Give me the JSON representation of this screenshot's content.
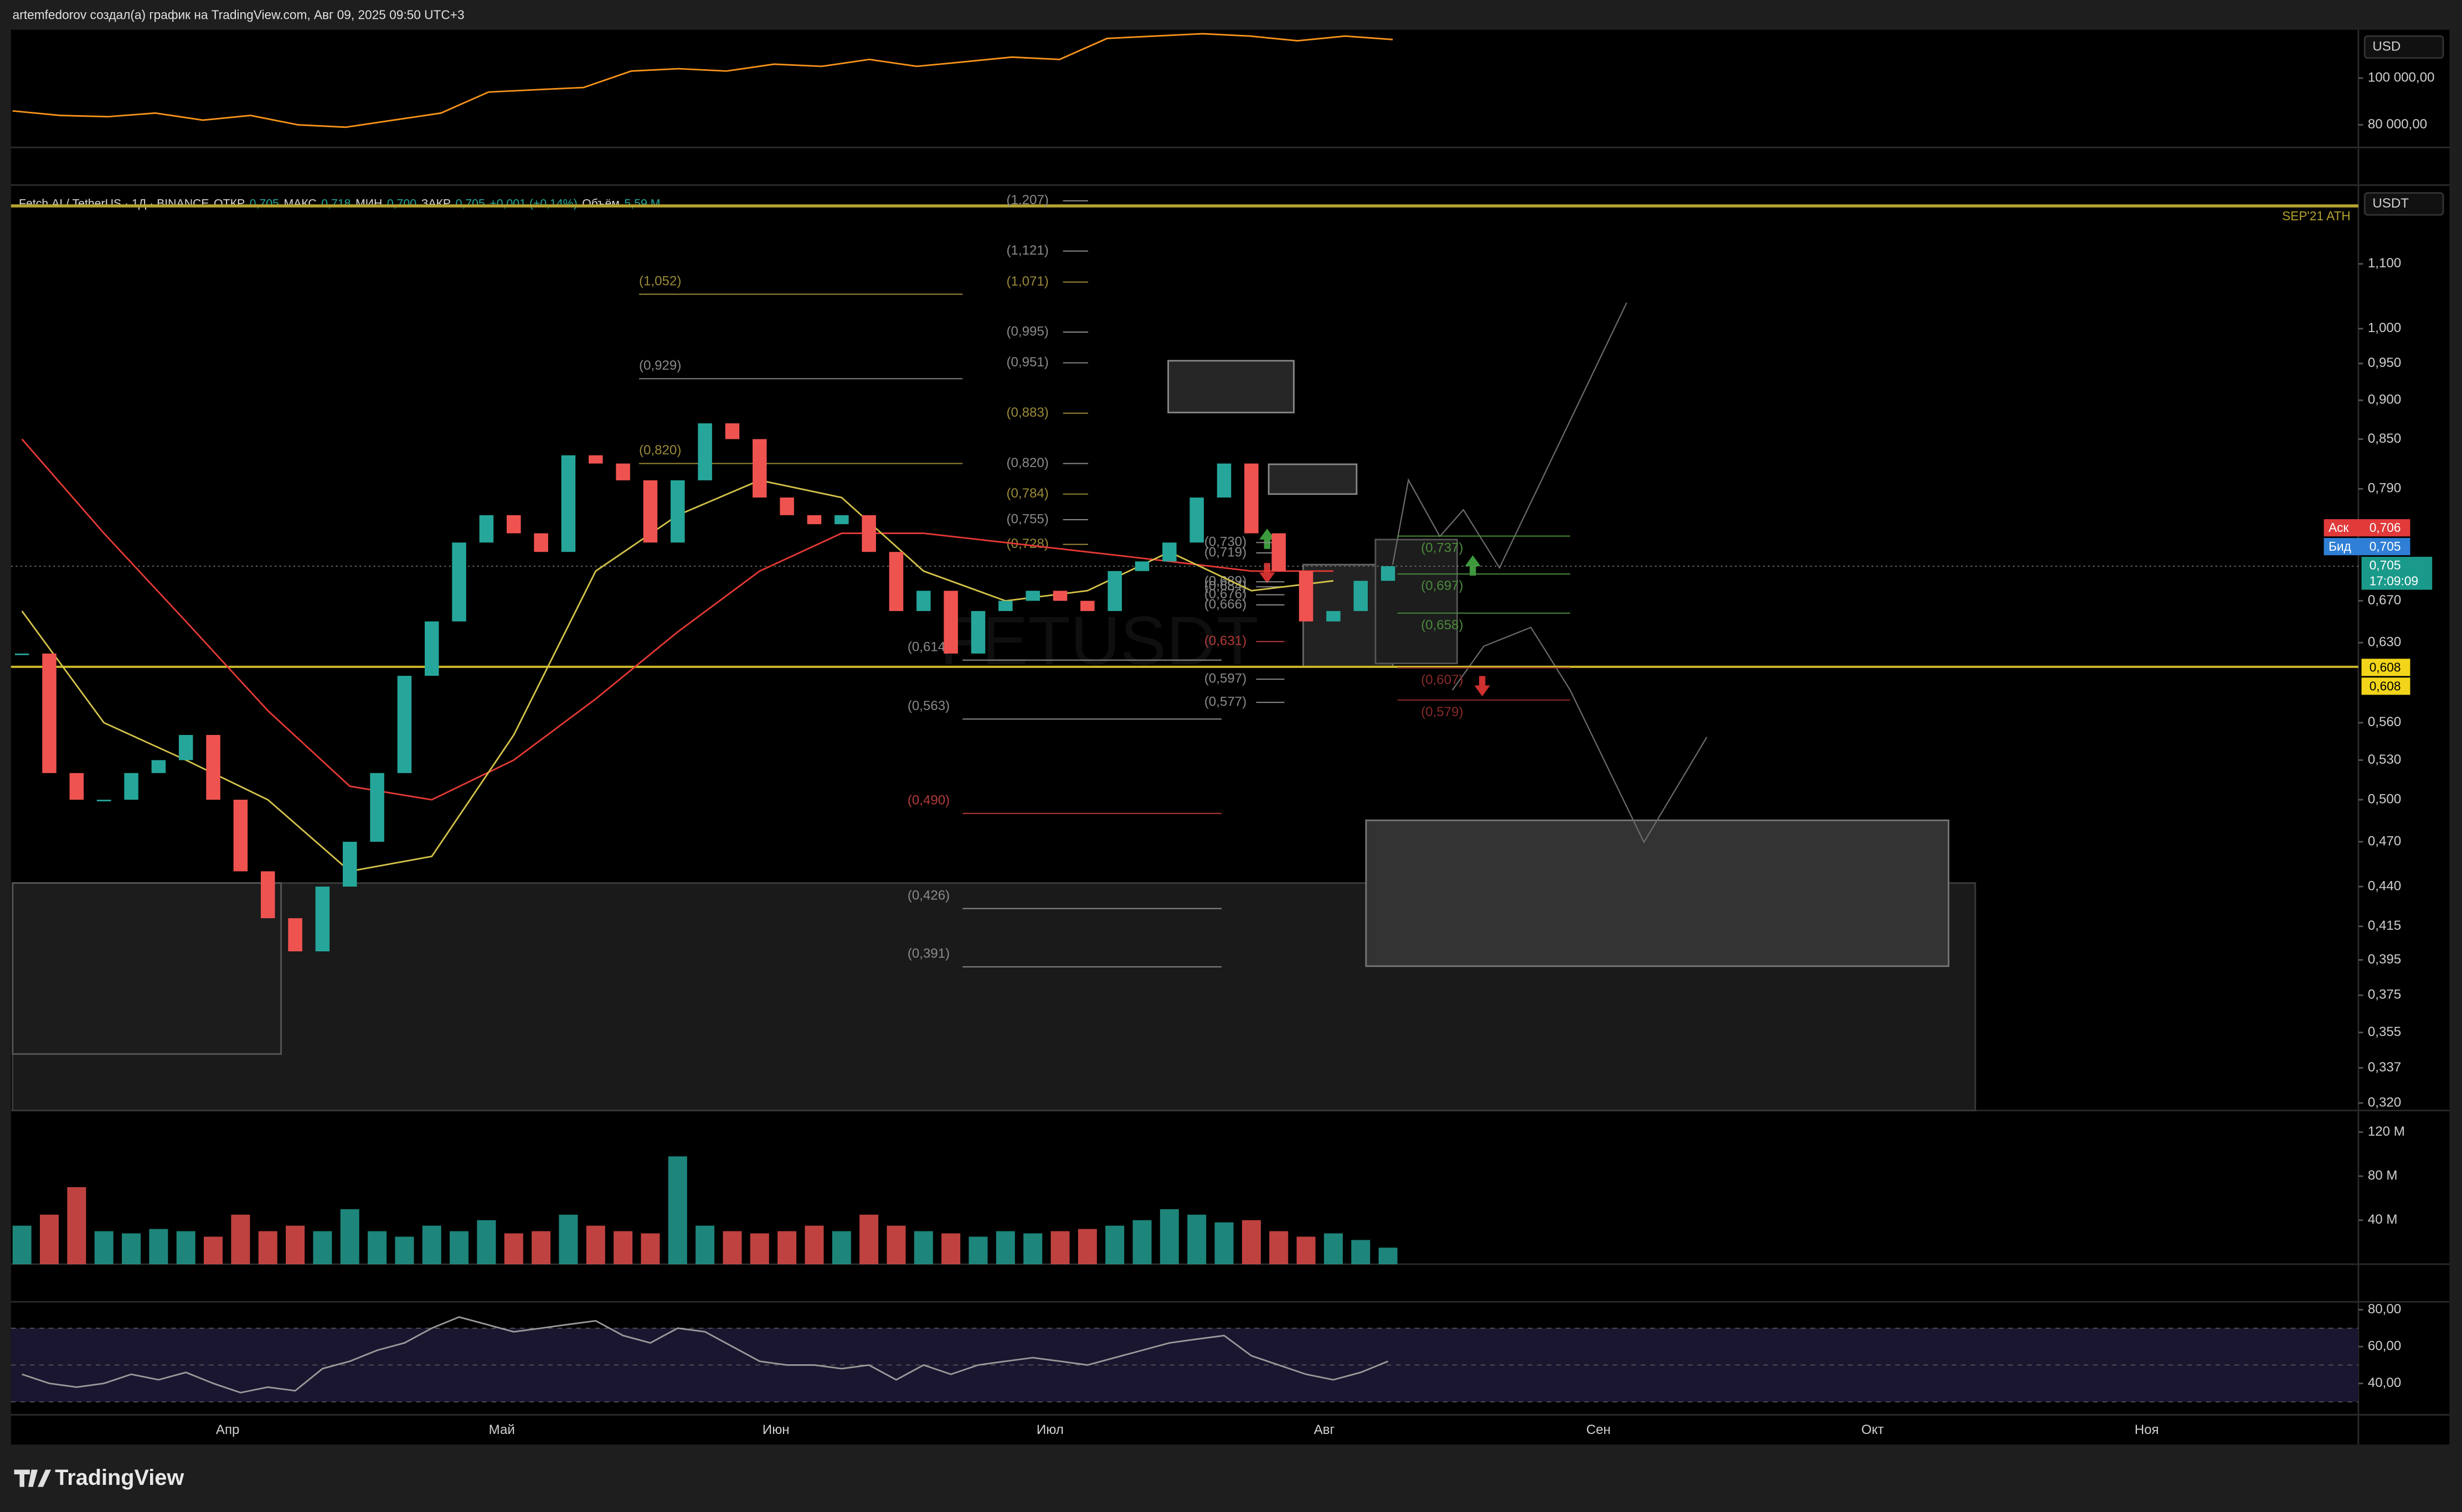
{
  "header": "artemfedorov создал(а) график на TradingView.com, Авг 09, 2025 09:50 UTC+3",
  "footer_logo": "TradingView",
  "chart_data": [
    {
      "type": "line",
      "currency": "USD",
      "color": "#f7931a",
      "values": [
        86000,
        84000,
        83500,
        85000,
        82000,
        84000,
        80000,
        79000,
        82000,
        85000,
        94000,
        95000,
        96000,
        103000,
        104000,
        103000,
        106000,
        105000,
        108000,
        105000,
        107000,
        109000,
        108000,
        117000,
        118000,
        119000,
        118000,
        116000,
        118000,
        116500
      ],
      "ylim": [
        71000,
        120000
      ],
      "yticks": [
        {
          "value": 100000,
          "label": "100 000,00"
        },
        {
          "value": 80000,
          "label": "80 000,00"
        }
      ]
    },
    {
      "type": "candlestick",
      "currency": "USDT",
      "watermark": "FETUSDT",
      "log_scale": true,
      "legend": [
        "Fetch.AI / TetherUS · 1Д · BINANCE",
        "ОТКР",
        "0,705",
        "МАКС",
        "0,718",
        "МИН",
        "0,700",
        "ЗАКР",
        "0,705",
        "+0,001 (+0,14%)",
        "Объём",
        "5,59 M"
      ],
      "legend_colors": [
        "#d8d8d8",
        "#d8d8d8",
        "#26a69a",
        "#d8d8d8",
        "#26a69a",
        "#d8d8d8",
        "#26a69a",
        "#d8d8d8",
        "#26a69a",
        "#26a69a",
        "#d8d8d8",
        "#26a69a"
      ],
      "up_color": "#26a69a",
      "down_color": "#ef5350",
      "ylim": [
        0.3165,
        1.2296
      ],
      "yticks": [
        {
          "value": 1.1,
          "label": "1,100"
        },
        {
          "value": 1.0,
          "label": "1,000"
        },
        {
          "value": 0.95,
          "label": "0,950"
        },
        {
          "value": 0.9,
          "label": "0,900"
        },
        {
          "value": 0.85,
          "label": "0,850"
        },
        {
          "value": 0.79,
          "label": "0,790"
        },
        {
          "value": 0.67,
          "label": "0,670"
        },
        {
          "value": 0.63,
          "label": "0,630"
        },
        {
          "value": 0.56,
          "label": "0,560"
        },
        {
          "value": 0.53,
          "label": "0,530"
        },
        {
          "value": 0.5,
          "label": "0,500"
        },
        {
          "value": 0.47,
          "label": "0,470"
        },
        {
          "value": 0.44,
          "label": "0,440"
        },
        {
          "value": 0.415,
          "label": "0,415"
        },
        {
          "value": 0.395,
          "label": "0,395"
        },
        {
          "value": 0.375,
          "label": "0,375"
        },
        {
          "value": 0.355,
          "label": "0,355"
        },
        {
          "value": 0.337,
          "label": "0,337"
        },
        {
          "value": 0.32,
          "label": "0,320"
        }
      ],
      "x_labels": [
        "Апр",
        "Май",
        "Июн",
        "Июл",
        "Авг",
        "Сен",
        "Окт",
        "Ноя"
      ],
      "values": [
        0.62,
        0.52,
        0.5,
        0.5,
        0.52,
        0.53,
        0.55,
        0.5,
        0.45,
        0.42,
        0.4,
        0.44,
        0.47,
        0.52,
        0.6,
        0.65,
        0.73,
        0.76,
        0.74,
        0.72,
        0.83,
        0.82,
        0.8,
        0.73,
        0.8,
        0.87,
        0.85,
        0.78,
        0.76,
        0.75,
        0.76,
        0.72,
        0.66,
        0.68,
        0.62,
        0.66,
        0.67,
        0.68,
        0.67,
        0.66,
        0.7,
        0.71,
        0.73,
        0.78,
        0.82,
        0.74,
        0.7,
        0.65,
        0.66,
        0.69,
        0.705
      ],
      "moving_averages": [
        {
          "color": "#e53935",
          "values": [
            0.85,
            0.74,
            0.65,
            0.57,
            0.51,
            0.5,
            0.53,
            0.58,
            0.64,
            0.7,
            0.74,
            0.74,
            0.73,
            0.72,
            0.71,
            0.7,
            0.7
          ]
        },
        {
          "color": "#d4c24a",
          "values": [
            0.66,
            0.56,
            0.53,
            0.5,
            0.45,
            0.46,
            0.55,
            0.7,
            0.76,
            0.8,
            0.78,
            0.7,
            0.67,
            0.68,
            0.72,
            0.68,
            0.69
          ]
        }
      ],
      "ath": {
        "value": 1.198,
        "label": "SEP'21 ATH",
        "color": "#b5a230"
      },
      "support": {
        "value": 0.608,
        "color": "#c9b82a"
      },
      "last": 0.705,
      "level_sets": [
        [
          {
            "value": 1.052,
            "label": "(1,052)",
            "color": "#9a8a3a"
          },
          {
            "value": 0.929,
            "label": "(0,929)",
            "color": "#8a8a8a"
          },
          {
            "value": 0.82,
            "label": "(0,820)",
            "color": "#9a8a3a"
          }
        ],
        [
          {
            "value": 1.207,
            "label": "(1,207)",
            "color": "#8a8a8a"
          },
          {
            "value": 1.121,
            "label": "(1,121)",
            "color": "#8a8a8a"
          },
          {
            "value": 1.071,
            "label": "(1,071)",
            "color": "#9a8a3a"
          },
          {
            "value": 0.995,
            "label": "(0,995)",
            "color": "#8a8a8a"
          },
          {
            "value": 0.951,
            "label": "(0,951)",
            "color": "#8a8a8a"
          },
          {
            "value": 0.883,
            "label": "(0,883)",
            "color": "#9a8a3a"
          },
          {
            "value": 0.82,
            "label": "(0,820)",
            "color": "#8a8a8a"
          },
          {
            "value": 0.784,
            "label": "(0,784)",
            "color": "#9a8a3a"
          },
          {
            "value": 0.755,
            "label": "(0,755)",
            "color": "#8a8a8a"
          },
          {
            "value": 0.728,
            "label": "(0,728)",
            "color": "#9a8a3a"
          }
        ],
        [
          {
            "value": 0.614,
            "label": "(0,614)",
            "color": "#8a8a8a"
          },
          {
            "value": 0.563,
            "label": "(0,563)",
            "color": "#8a8a8a"
          },
          {
            "value": 0.49,
            "label": "(0,490)",
            "color": "#b33a3a"
          },
          {
            "value": 0.426,
            "label": "(0,426)",
            "color": "#8a8a8a"
          },
          {
            "value": 0.391,
            "label": "(0,391)",
            "color": "#8a8a8a"
          }
        ],
        [
          {
            "value": 0.73,
            "label": "(0,730)",
            "color": "#8a8a8a"
          },
          {
            "value": 0.719,
            "label": "(0,719)",
            "color": "#8a8a8a"
          },
          {
            "value": 0.689,
            "label": "(0,689)",
            "color": "#8a8a8a"
          },
          {
            "value": 0.684,
            "label": "(0,684)",
            "color": "#8a8a8a"
          },
          {
            "value": 0.676,
            "label": "(0,676)",
            "color": "#8a8a8a"
          },
          {
            "value": 0.666,
            "label": "(0,666)",
            "color": "#8a8a8a"
          },
          {
            "value": 0.631,
            "label": "(0,631)",
            "color": "#b33a3a"
          },
          {
            "value": 0.597,
            "label": "(0,597)",
            "color": "#8a8a8a"
          },
          {
            "value": 0.577,
            "label": "(0,577)",
            "color": "#8a8a8a"
          }
        ],
        [
          {
            "value": 0.737,
            "label": "(0,737)",
            "color": "#4a8a3a"
          },
          {
            "value": 0.697,
            "label": "(0,697)",
            "color": "#4a8a3a"
          },
          {
            "value": 0.658,
            "label": "(0,658)",
            "color": "#4a8a3a"
          },
          {
            "value": 0.607,
            "label": "(0,607)",
            "color": "#8a2a2a"
          },
          {
            "value": 0.579,
            "label": "(0,579)",
            "color": "#8a2a2a"
          }
        ]
      ],
      "price_tags": {
        "ask_label": "Аск",
        "ask": "0,706",
        "bid_label": "Бид",
        "bid": "0,705",
        "last": "0,705",
        "countdown": "17:09:09",
        "support_a": "0,608",
        "support_b": "0,608"
      }
    },
    {
      "type": "bar",
      "values": [
        35,
        45,
        70,
        30,
        28,
        32,
        30,
        25,
        45,
        30,
        35,
        30,
        50,
        30,
        25,
        35,
        30,
        40,
        28,
        30,
        45,
        35,
        30,
        28,
        98,
        35,
        30,
        28,
        30,
        35,
        30,
        45,
        35,
        30,
        28,
        25,
        30,
        28,
        30,
        32,
        35,
        40,
        50,
        45,
        38,
        40,
        30,
        25,
        28,
        22,
        15
      ],
      "ylim": [
        0,
        134
      ],
      "yticks": [
        {
          "value": 120,
          "label": "120 M"
        },
        {
          "value": 80,
          "label": "80 M"
        },
        {
          "value": 40,
          "label": "40 M"
        }
      ]
    },
    {
      "type": "line",
      "color": "#9a9a9a",
      "values": [
        45,
        40,
        38,
        40,
        45,
        42,
        46,
        40,
        35,
        38,
        36,
        48,
        52,
        58,
        62,
        70,
        76,
        72,
        68,
        70,
        72,
        74,
        66,
        62,
        70,
        68,
        60,
        52,
        50,
        50,
        48,
        50,
        42,
        50,
        45,
        50,
        52,
        54,
        52,
        50,
        54,
        58,
        62,
        64,
        66,
        55,
        50,
        45,
        42,
        46,
        52
      ],
      "ylim": [
        24.7,
        84.3
      ],
      "yticks": [
        {
          "value": 80,
          "label": "80,00"
        },
        {
          "value": 60,
          "label": "60,00"
        },
        {
          "value": 40,
          "label": "40,00"
        }
      ],
      "bands": [
        70,
        50,
        30
      ]
    }
  ]
}
